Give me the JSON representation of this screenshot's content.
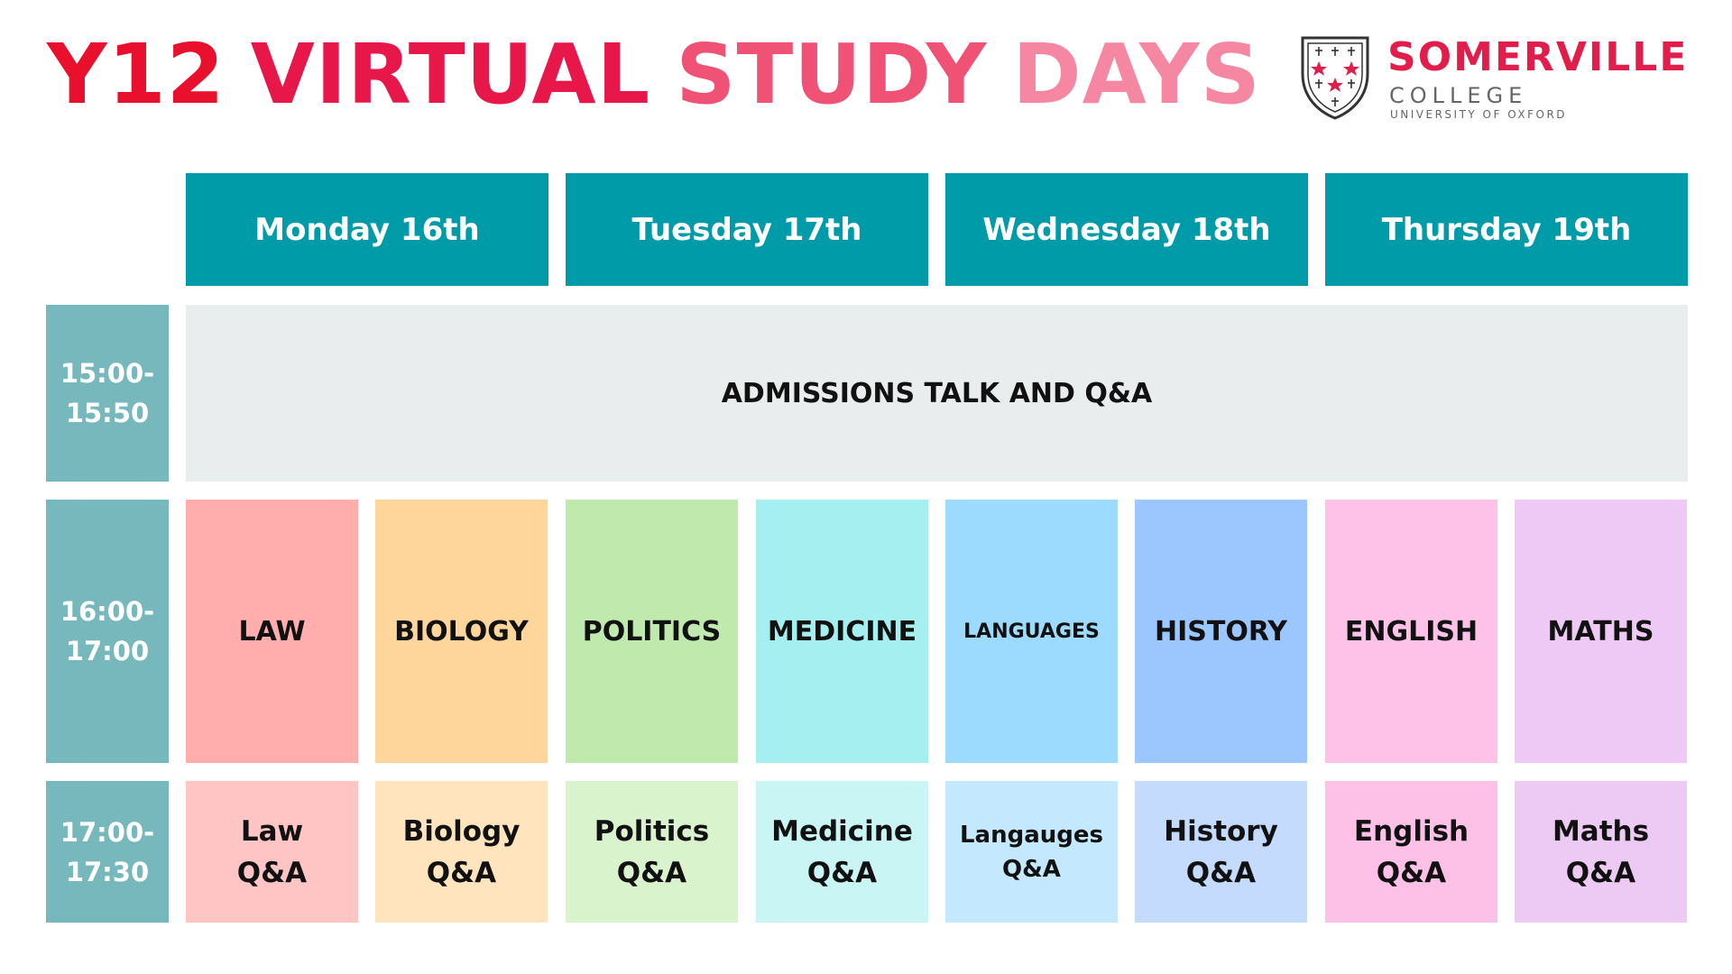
{
  "header": {
    "title_parts": [
      {
        "text": "Y12",
        "color": "#e8102d"
      },
      {
        "text": "VIRTUAL",
        "color": "#e8174a"
      },
      {
        "text": "STUDY",
        "color": "#f05276"
      },
      {
        "text": "DAYS",
        "color": "#f587a3"
      }
    ]
  },
  "logo": {
    "name": "SOMERVILLE",
    "college": "COLLEGE",
    "university": "UNIVERSITY OF OXFORD",
    "name_color": "#e11e4b",
    "sub_color": "#666666"
  },
  "colors": {
    "day_header": "#009ba8",
    "time_block": "#76b8bc",
    "banner": "#e9edee"
  },
  "days": [
    "Monday 16th",
    "Tuesday 17th",
    "Wednesday 18th",
    "Thursday 19th"
  ],
  "times": [
    "15:00-\n15:50",
    "16:00-\n17:00",
    "17:00-\n17:30"
  ],
  "banner_text": "ADMISSIONS TALK AND Q&A",
  "subjects": [
    {
      "label": "LAW",
      "qa": "Law\nQ&A",
      "color": "#ffadad",
      "qa_color": "#ffc5c5"
    },
    {
      "label": "BIOLOGY",
      "qa": "Biology\nQ&A",
      "color": "#fed69c",
      "qa_color": "#ffe4bd"
    },
    {
      "label": "POLITICS",
      "qa": "Politics\nQ&A",
      "color": "#c0eaad",
      "qa_color": "#d9f3cc"
    },
    {
      "label": "MEDICINE",
      "qa": "Medicine\nQ&A",
      "color": "#a6eff0",
      "qa_color": "#c9f5f5"
    },
    {
      "label": "LANGUAGES",
      "qa": "Langauges\nQ&A",
      "color": "#9cdbfe",
      "qa_color": "#c4e8fd"
    },
    {
      "label": "HISTORY",
      "qa": "History\nQ&A",
      "color": "#9cc6fe",
      "qa_color": "#c4dbfd"
    },
    {
      "label": "ENGLISH",
      "qa": "English\nQ&A",
      "color": "#fec2e9",
      "qa_color": "#fdc1e7"
    },
    {
      "label": "MATHS",
      "qa": "Maths\nQ&A",
      "color": "#eec9f5",
      "qa_color": "#eccaf4"
    }
  ]
}
